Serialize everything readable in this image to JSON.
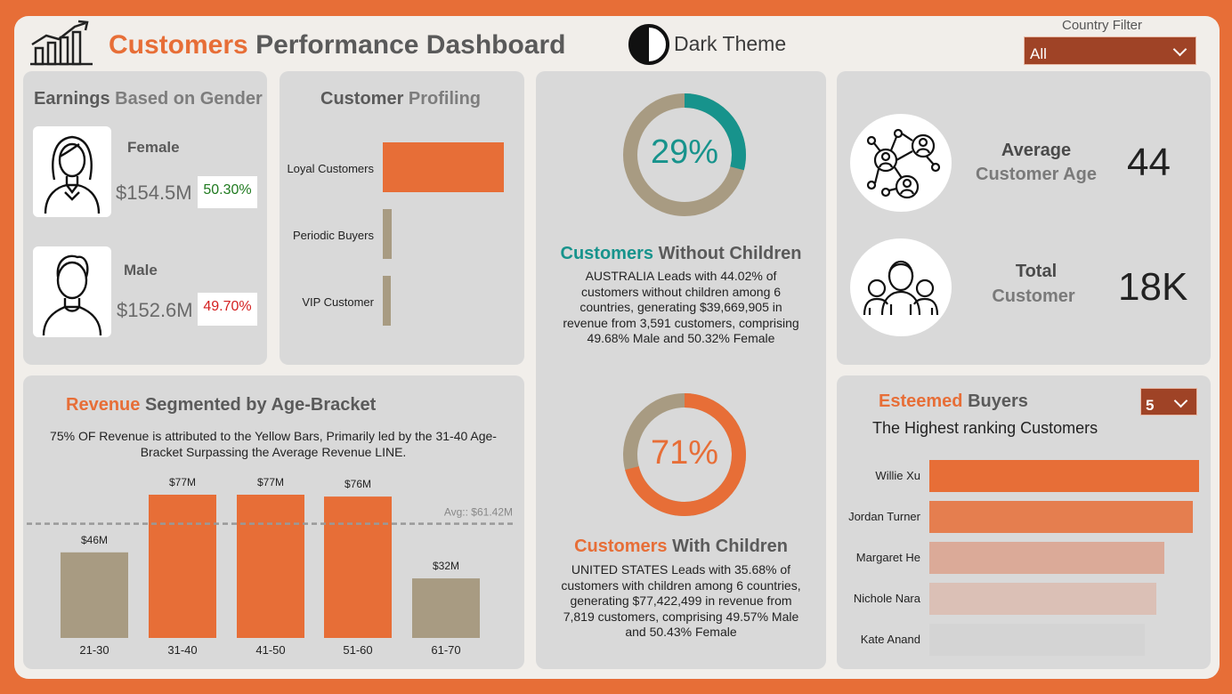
{
  "header": {
    "title_accent": "Customers",
    "title_rest": "Performance Dashboard",
    "theme_label": "Dark Theme",
    "filter_label": "Country Filter",
    "filter_value": "All"
  },
  "gender": {
    "title_part1": "Earnings",
    "title_part2": "Based on Gender",
    "female": {
      "label": "Female",
      "amount": "$154.5M",
      "pct": "50.30%"
    },
    "male": {
      "label": "Male",
      "amount": "$152.6M",
      "pct": "49.70%"
    }
  },
  "profiling": {
    "title_part1": "Customer",
    "title_part2": "Profiling",
    "items": [
      {
        "label": "Loyal Customers",
        "value": 1.0,
        "color": "#e76e37"
      },
      {
        "label": "Periodic Buyers",
        "value": 0.07,
        "color": "#a89b82"
      },
      {
        "label": "VIP Customer",
        "value": 0.05,
        "color": "#a89b82"
      }
    ]
  },
  "without_children": {
    "pct": "29%",
    "value": 0.29,
    "title_accent": "Customers",
    "title_rest": "Without Children",
    "text": "AUSTRALIA Leads with 44.02% of customers without children among 6 countries, generating $39,669,905 in revenue from 3,591 customers, comprising 49.68% Male and 50.32% Female",
    "color": "#17938c"
  },
  "with_children": {
    "pct": "71%",
    "value": 0.71,
    "title_accent": "Customers",
    "title_rest": "With Children",
    "text": "UNITED STATES Leads with 35.68% of customers with children among 6 countries, generating $77,422,499 in revenue from 7,819 customers, comprising 49.57% Male and 50.43% Female",
    "color": "#e76e37"
  },
  "kpis": {
    "avg_age_title": "Average",
    "avg_age_sub": "Customer Age",
    "avg_age_value": "44",
    "total_title": "Total",
    "total_sub": "Customer",
    "total_value": "18K"
  },
  "buyers": {
    "title_accent": "Esteemed",
    "title_rest": "Buyers",
    "subtitle": "The Highest ranking Customers",
    "topn": "5",
    "items": [
      {
        "name": "Willie Xu",
        "value": 1.0,
        "color": "#e76e37"
      },
      {
        "name": "Jordan Turner",
        "value": 0.976,
        "color": "#e57e4f"
      },
      {
        "name": "Margaret He",
        "value": 0.87,
        "color": "#dbaa98"
      },
      {
        "name": "Nichole Nara",
        "value": 0.84,
        "color": "#dbc0b6"
      },
      {
        "name": "Kate Anand",
        "value": 0.8,
        "color": "#d4d4d4"
      }
    ]
  },
  "revenue": {
    "title_accent": "Revenue",
    "title_rest": "Segmented by Age-Bracket",
    "note": "75% OF Revenue is attributed to the Yellow Bars, Primarily led by the 31-40 Age-Bracket Surpassing the Average Revenue LINE.",
    "avg_label": "Avg:: $61.42M"
  },
  "chart_data": {
    "type": "bar",
    "categories": [
      "21-30",
      "31-40",
      "41-50",
      "51-60",
      "61-70"
    ],
    "values": [
      46,
      77,
      77,
      76,
      32
    ],
    "value_labels": [
      "$46M",
      "$77M",
      "$77M",
      "$76M",
      "$32M"
    ],
    "colors": [
      "#a89b82",
      "#e76e37",
      "#e76e37",
      "#e76e37",
      "#a89b82"
    ],
    "average": 61.42,
    "ylim": [
      0,
      77
    ]
  }
}
